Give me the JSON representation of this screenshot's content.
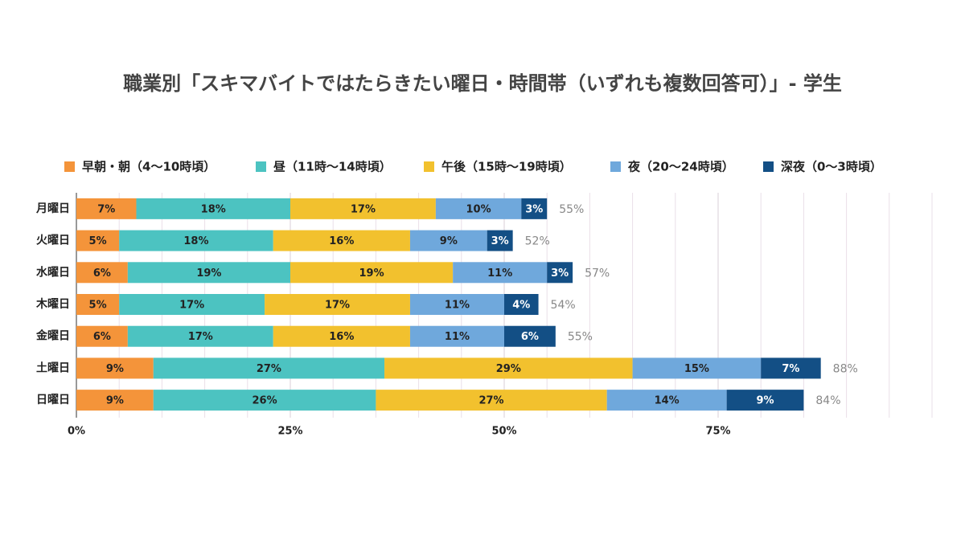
{
  "chart_data": {
    "type": "stacked-barh",
    "title": "職業別「スキマバイトではたらきたい曜日・時間帯（いずれも複数回答可）」- 学生",
    "categories": [
      "月曜日",
      "火曜日",
      "水曜日",
      "木曜日",
      "金曜日",
      "土曜日",
      "日曜日"
    ],
    "series": [
      {
        "name": "早朝・朝（4〜10時頃）",
        "color": "#f4943a",
        "values": [
          7,
          5,
          6,
          5,
          6,
          9,
          9
        ],
        "value_labels": [
          "7%",
          "5%",
          "6%",
          "5%",
          "6%",
          "9%",
          "9%"
        ]
      },
      {
        "name": "昼（11時〜14時頃）",
        "color": "#4cc3c1",
        "values": [
          18,
          18,
          19,
          17,
          17,
          27,
          26
        ],
        "value_labels": [
          "18%",
          "18%",
          "19%",
          "17%",
          "17%",
          "27%",
          "26%"
        ]
      },
      {
        "name": "午後（15時〜19時頃）",
        "color": "#f2c12e",
        "values": [
          17,
          16,
          19,
          17,
          16,
          29,
          27
        ],
        "value_labels": [
          "17%",
          "16%",
          "19%",
          "17%",
          "16%",
          "29%",
          "27%"
        ]
      },
      {
        "name": "夜（20〜24時頃）",
        "color": "#6fa8dc",
        "values": [
          10,
          9,
          11,
          11,
          11,
          15,
          14
        ],
        "value_labels": [
          "10%",
          "9%",
          "11%",
          "11%",
          "11%",
          "15%",
          "14%"
        ]
      },
      {
        "name": "深夜（0〜3時頃）",
        "color": "#134f85",
        "values": [
          3,
          3,
          3,
          4,
          6,
          7,
          9
        ],
        "value_labels": [
          "3%",
          "3%",
          "3%",
          "4%",
          "6%",
          "7%",
          "9%"
        ]
      }
    ],
    "totals": [
      55,
      52,
      57,
      54,
      55,
      88,
      84
    ],
    "total_labels": [
      "55%",
      "52%",
      "57%",
      "54%",
      "55%",
      "88%",
      "84%"
    ],
    "xlim": [
      0,
      100
    ],
    "xticks": [
      {
        "value": 0,
        "label": "0%"
      },
      {
        "value": 25,
        "label": "25%"
      },
      {
        "value": 50,
        "label": "50%"
      },
      {
        "value": 75,
        "label": "75%"
      }
    ],
    "minor_xticks": [
      5,
      10,
      15,
      20,
      30,
      35,
      40,
      45,
      55,
      60,
      65,
      70,
      80,
      85,
      90,
      95,
      100
    ],
    "grid": true,
    "legend": "top"
  }
}
